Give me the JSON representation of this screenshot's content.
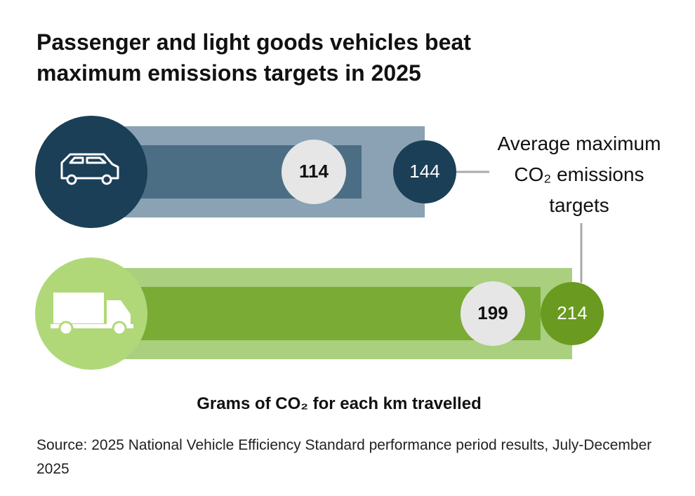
{
  "chart_data": {
    "type": "bar",
    "title": "Passenger and light goods vehicles beat maximum emissions targets in 2025",
    "x_label": "Grams of CO₂ for each km travelled",
    "source": "Source: 2025 National Vehicle Efficiency Standard performance period results, July-December 2025",
    "xlim": [
      0,
      250
    ],
    "icon_colors": [
      "#1b3f57",
      "#b0d878"
    ],
    "series": [
      {
        "values": [
          114,
          199
        ],
        "colors": [
          "#4b6e85",
          "#7aab35"
        ],
        "label_color": "#e6e6e6"
      },
      {
        "name": "Average maximum CO₂ emissions targets",
        "values": [
          144,
          214
        ],
        "colors": [
          "#8aa2b3",
          "#a9cf7f"
        ],
        "label_colors": [
          "#1b3f57",
          "#6a9a1f"
        ]
      }
    ]
  }
}
